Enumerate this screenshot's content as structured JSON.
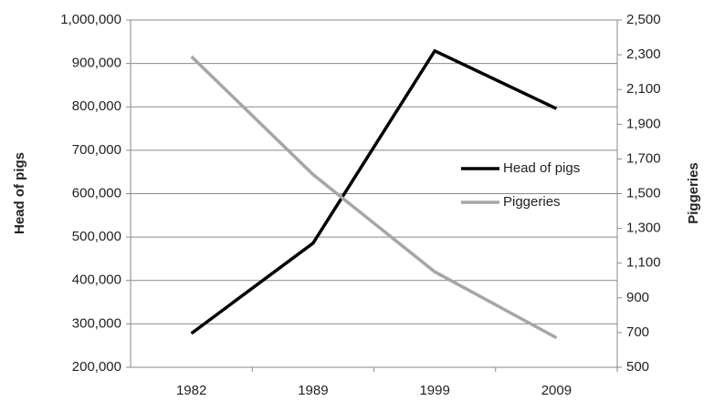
{
  "chart_data": {
    "type": "line",
    "categories": [
      "1982",
      "1989",
      "1999",
      "2009"
    ],
    "y_label": "Head of pigs",
    "y2_label": "Piggeries",
    "series": [
      {
        "name": "Head of pigs",
        "color": "#000000",
        "values": [
          278000,
          486000,
          929000,
          796000
        ]
      },
      {
        "name": "Piggeries",
        "color": "#a6a6a6",
        "axis": "y2",
        "values": [
          2290,
          1610,
          1050,
          670
        ]
      }
    ],
    "ylim": [
      200000,
      1000000
    ],
    "yticks": [
      {
        "value": 200000,
        "label": "200,000"
      },
      {
        "value": 300000,
        "label": "300,000"
      },
      {
        "value": 400000,
        "label": "400,000"
      },
      {
        "value": 500000,
        "label": "500,000"
      },
      {
        "value": 600000,
        "label": "600,000"
      },
      {
        "value": 700000,
        "label": "700,000"
      },
      {
        "value": 800000,
        "label": "800,000"
      },
      {
        "value": 900000,
        "label": "900,000"
      },
      {
        "value": 1000000,
        "label": "1,000,000"
      }
    ],
    "y2lim": [
      500,
      2500
    ],
    "y2ticks": [
      500,
      700,
      900,
      {
        "value": 1100,
        "label": "1,100"
      },
      {
        "value": 1300,
        "label": "1,300"
      },
      {
        "value": 1500,
        "label": "1,500"
      },
      {
        "value": 1700,
        "label": "1,700"
      },
      {
        "value": 1900,
        "label": "1,900"
      },
      {
        "value": 2100,
        "label": "2,100"
      },
      {
        "value": 2300,
        "label": "2,300"
      },
      {
        "value": 2500,
        "label": "2,500"
      }
    ],
    "grid": true,
    "legend": "right"
  }
}
